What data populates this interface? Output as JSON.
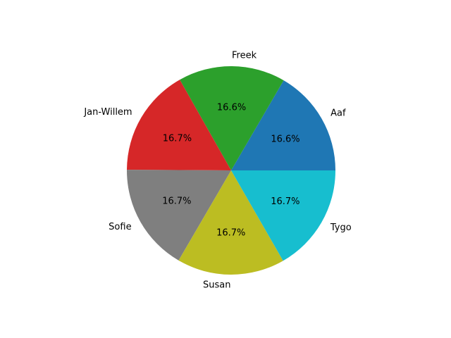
{
  "chart_data": {
    "type": "pie",
    "title": "",
    "categories": [
      "Aaf",
      "Freek",
      "Jan-Willem",
      "Sofie",
      "Susan",
      "Tygo"
    ],
    "values": [
      16.6,
      16.6,
      16.7,
      16.7,
      16.7,
      16.7
    ],
    "percent_labels": [
      "16.6%",
      "16.6%",
      "16.7%",
      "16.7%",
      "16.7%",
      "16.7%"
    ],
    "colors": [
      "#1f77b4",
      "#2ca02c",
      "#d62728",
      "#7f7f7f",
      "#bcbd22",
      "#17becf"
    ],
    "start_angle_deg": 0,
    "direction": "counterclockwise",
    "legend": "none"
  }
}
